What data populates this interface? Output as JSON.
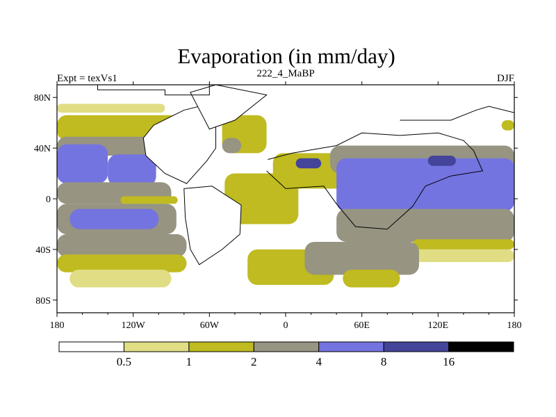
{
  "chart_data": {
    "type": "heatmap",
    "title": "Evaporation (in mm/day)",
    "subtitle_left": "Expt = texVs1",
    "subtitle_center": "222_4_MaBP",
    "subtitle_right": "DJF",
    "units": "mm/day",
    "xlim": [
      -180,
      180
    ],
    "ylim": [
      -90,
      90
    ],
    "x_ticks": [
      {
        "value": -180,
        "label": "180"
      },
      {
        "value": -120,
        "label": "120W"
      },
      {
        "value": -60,
        "label": "60W"
      },
      {
        "value": 0,
        "label": "0"
      },
      {
        "value": 60,
        "label": "60E"
      },
      {
        "value": 120,
        "label": "120E"
      },
      {
        "value": 180,
        "label": "180"
      }
    ],
    "y_ticks": [
      {
        "value": 80,
        "label": "80N"
      },
      {
        "value": 40,
        "label": "40N"
      },
      {
        "value": 0,
        "label": "0"
      },
      {
        "value": -40,
        "label": "40S"
      },
      {
        "value": -80,
        "label": "80S"
      }
    ],
    "colorbar": {
      "levels": [
        "0.5",
        "1",
        "2",
        "4",
        "8",
        "16"
      ],
      "colors": [
        "#ffffff",
        "#e0dd85",
        "#bfbb20",
        "#979482",
        "#7474e0",
        "#44449a",
        "#000000"
      ]
    },
    "fill_bands": [
      {
        "level_index": 1,
        "lat_south": 68,
        "lat_north": 75,
        "lon_west": -180,
        "lon_east": -95
      },
      {
        "level_index": 2,
        "lat_south": 46,
        "lat_north": 66,
        "lon_west": -180,
        "lon_east": -65
      },
      {
        "level_index": 3,
        "lat_south": 34,
        "lat_north": 49,
        "lon_west": -180,
        "lon_east": -70
      },
      {
        "level_index": 4,
        "lat_south": 12,
        "lat_north": 43,
        "lon_west": -180,
        "lon_east": -140
      },
      {
        "level_index": 4,
        "lat_south": 10,
        "lat_north": 35,
        "lon_west": -140,
        "lon_east": -102
      },
      {
        "level_index": 3,
        "lat_south": -4,
        "lat_north": 13,
        "lon_west": -180,
        "lon_east": -90
      },
      {
        "level_index": 2,
        "lat_south": -4,
        "lat_north": 2,
        "lon_west": -130,
        "lon_east": -85
      },
      {
        "level_index": 3,
        "lat_south": -28,
        "lat_north": -4,
        "lon_west": -180,
        "lon_east": -86
      },
      {
        "level_index": 4,
        "lat_south": -24,
        "lat_north": -8,
        "lon_west": -170,
        "lon_east": -100
      },
      {
        "level_index": 3,
        "lat_south": -46,
        "lat_north": -28,
        "lon_west": -180,
        "lon_east": -78
      },
      {
        "level_index": 2,
        "lat_south": -58,
        "lat_north": -44,
        "lon_west": -180,
        "lon_east": -78
      },
      {
        "level_index": 1,
        "lat_south": -70,
        "lat_north": -56,
        "lon_west": -170,
        "lon_east": -90
      },
      {
        "level_index": 2,
        "lat_south": 8,
        "lat_north": 36,
        "lon_west": -10,
        "lon_east": 60
      },
      {
        "level_index": 3,
        "lat_south": 20,
        "lat_north": 42,
        "lon_west": 35,
        "lon_east": 180
      },
      {
        "level_index": 4,
        "lat_south": -10,
        "lat_north": 32,
        "lon_west": 40,
        "lon_east": 180
      },
      {
        "level_index": 5,
        "lat_south": 24,
        "lat_north": 32,
        "lon_west": 8,
        "lon_east": 28
      },
      {
        "level_index": 5,
        "lat_south": 26,
        "lat_north": 34,
        "lon_west": 112,
        "lon_east": 134
      },
      {
        "level_index": 3,
        "lat_south": -34,
        "lat_north": -8,
        "lon_west": 40,
        "lon_east": 180
      },
      {
        "level_index": 2,
        "lat_south": -40,
        "lat_north": -32,
        "lon_west": 100,
        "lon_east": 180
      },
      {
        "level_index": 1,
        "lat_south": -50,
        "lat_north": -40,
        "lon_west": 100,
        "lon_east": 180
      },
      {
        "level_index": 2,
        "lat_south": 54,
        "lat_north": 62,
        "lon_west": 170,
        "lon_east": 180
      },
      {
        "level_index": 2,
        "lat_south": -20,
        "lat_north": 20,
        "lon_west": -48,
        "lon_east": 10
      },
      {
        "level_index": 2,
        "lat_south": -68,
        "lat_north": -40,
        "lon_west": -30,
        "lon_east": 38
      },
      {
        "level_index": 3,
        "lat_south": -60,
        "lat_north": -34,
        "lon_west": 15,
        "lon_east": 105
      },
      {
        "level_index": 2,
        "lat_south": -70,
        "lat_north": -56,
        "lon_west": 45,
        "lon_east": 90
      },
      {
        "level_index": 2,
        "lat_south": 36,
        "lat_north": 66,
        "lon_west": -50,
        "lon_east": -15
      },
      {
        "level_index": 3,
        "lat_south": 36,
        "lat_north": 48,
        "lon_west": -50,
        "lon_east": -35
      }
    ],
    "land_masks": [
      {
        "name": "north-america",
        "points": [
          [
            -112,
            48
          ],
          [
            -104,
            58
          ],
          [
            -80,
            70
          ],
          [
            -68,
            73
          ],
          [
            -55,
            66
          ],
          [
            -55,
            40
          ],
          [
            -62,
            30
          ],
          [
            -78,
            12
          ],
          [
            -95,
            20
          ],
          [
            -110,
            34
          ]
        ]
      },
      {
        "name": "south-america",
        "points": [
          [
            -80,
            8
          ],
          [
            -58,
            10
          ],
          [
            -35,
            -5
          ],
          [
            -36,
            -28
          ],
          [
            -50,
            -40
          ],
          [
            -68,
            -52
          ],
          [
            -75,
            -40
          ],
          [
            -79,
            -15
          ]
        ]
      },
      {
        "name": "greenland",
        "points": [
          [
            -60,
            55
          ],
          [
            -40,
            62
          ],
          [
            -15,
            82
          ],
          [
            -55,
            90
          ],
          [
            -75,
            84
          ]
        ]
      }
    ],
    "coast_outlines": [
      {
        "name": "north-polar-outline",
        "points": [
          [
            -148,
            90
          ],
          [
            -148,
            86
          ],
          [
            -95,
            86
          ],
          [
            -95,
            82
          ],
          [
            -60,
            82
          ],
          [
            -60,
            90
          ]
        ]
      },
      {
        "name": "asia-arctic-outline",
        "points": [
          [
            90,
            62
          ],
          [
            130,
            62
          ],
          [
            150,
            70
          ],
          [
            160,
            73
          ],
          [
            180,
            68
          ]
        ]
      },
      {
        "name": "africa-eurasia-coast",
        "points": [
          [
            -14,
            31
          ],
          [
            5,
            36
          ],
          [
            40,
            42
          ],
          [
            60,
            52
          ],
          [
            90,
            50
          ],
          [
            120,
            52
          ],
          [
            140,
            46
          ],
          [
            148,
            38
          ],
          [
            155,
            22
          ],
          [
            130,
            18
          ],
          [
            110,
            10
          ],
          [
            100,
            -6
          ],
          [
            80,
            -24
          ],
          [
            55,
            -22
          ],
          [
            40,
            -4
          ],
          [
            30,
            10
          ],
          [
            0,
            8
          ],
          [
            -15,
            22
          ]
        ]
      }
    ]
  }
}
